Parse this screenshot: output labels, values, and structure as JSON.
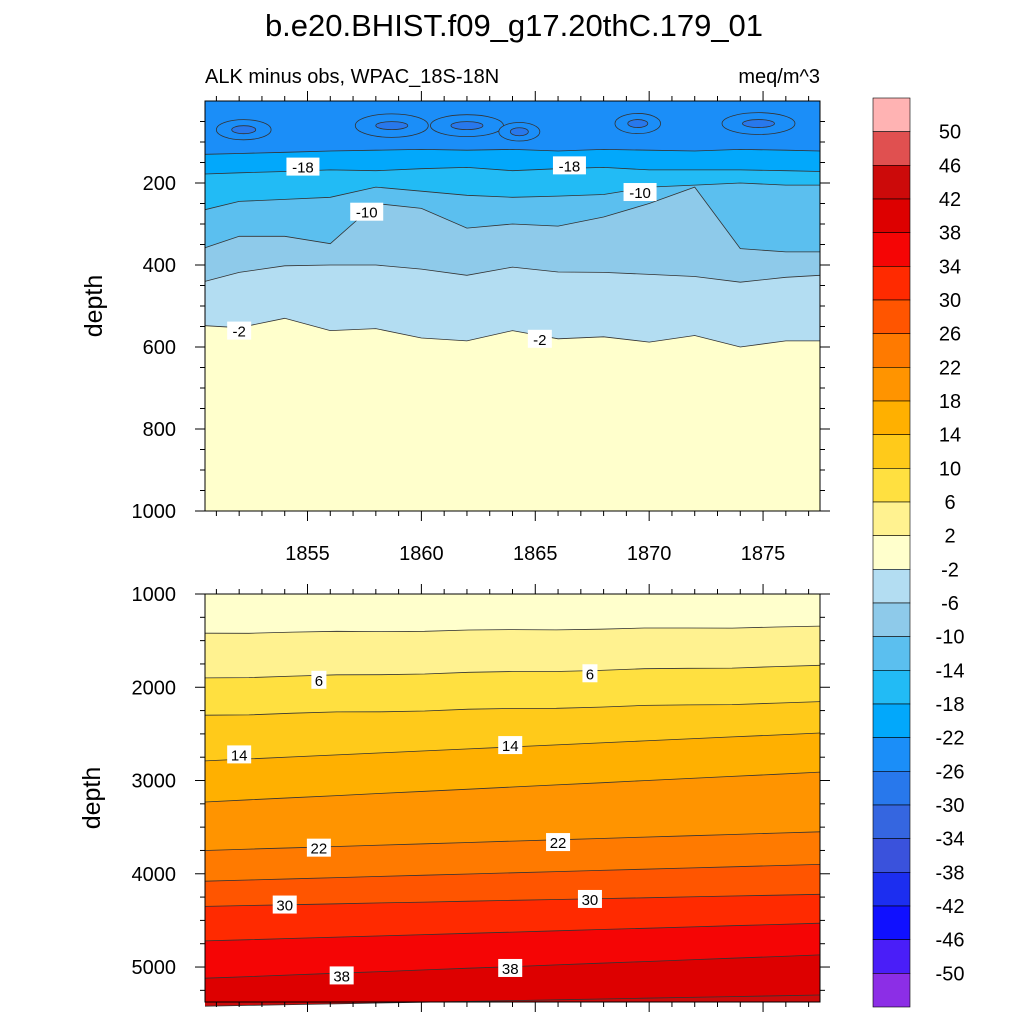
{
  "title": "b.e20.BHIST.f09_g17.20thC.179_01",
  "chart_data": [
    {
      "type": "contour",
      "left_string": "ALK minus obs, WPAC_18S-18N",
      "right_string": "meq/m^3",
      "ylabel": "depth",
      "y_reversed": true,
      "xlim": [
        1850.5,
        1877.5
      ],
      "ylim": [
        0,
        1000
      ],
      "x_ticks": [
        1855,
        1860,
        1865,
        1870,
        1875
      ],
      "y_ticks": [
        200,
        400,
        600,
        800,
        1000
      ],
      "x_years": [
        1850.5,
        1852,
        1854,
        1856,
        1858,
        1860,
        1862,
        1864,
        1866,
        1868,
        1870,
        1872,
        1874,
        1876,
        1877.5
      ],
      "contour_boundaries": [
        {
          "level": -2,
          "depth": [
            548,
            553,
            530,
            560,
            555,
            578,
            585,
            560,
            580,
            575,
            588,
            572,
            600,
            585,
            585
          ]
        },
        {
          "level": -6,
          "depth": [
            440,
            418,
            402,
            400,
            400,
            410,
            425,
            405,
            417,
            418,
            423,
            428,
            442,
            430,
            425
          ]
        },
        {
          "level": -10,
          "depth": [
            358,
            330,
            330,
            348,
            250,
            262,
            310,
            300,
            305,
            283,
            250,
            210,
            360,
            368,
            368
          ]
        },
        {
          "level": -14,
          "depth": [
            265,
            245,
            240,
            235,
            210,
            220,
            230,
            235,
            232,
            228,
            210,
            205,
            200,
            205,
            205
          ]
        },
        {
          "level": -18,
          "depth": [
            178,
            175,
            172,
            168,
            170,
            165,
            162,
            170,
            165,
            162,
            168,
            168,
            168,
            170,
            172
          ]
        },
        {
          "level": -22,
          "depth": [
            130,
            128,
            125,
            122,
            120,
            118,
            120,
            118,
            122,
            118,
            120,
            122,
            118,
            120,
            122
          ]
        }
      ],
      "contour_labels": [
        {
          "text": "-18",
          "x": 1854.8,
          "depth": 160
        },
        {
          "text": "-18",
          "x": 1866.5,
          "depth": 157
        },
        {
          "text": "-10",
          "x": 1857.6,
          "depth": 270
        },
        {
          "text": "-10",
          "x": 1869.6,
          "depth": 222
        },
        {
          "text": "-2",
          "x": 1852.0,
          "depth": 560
        },
        {
          "text": "-2",
          "x": 1865.2,
          "depth": 580
        }
      ]
    },
    {
      "type": "contour",
      "ylabel": "depth",
      "y_reversed": true,
      "xlim": [
        1850.5,
        1877.5
      ],
      "ylim": [
        1000,
        5375
      ],
      "y_ticks": [
        1000,
        2000,
        3000,
        4000,
        5000
      ],
      "levels_depth_left_right": [
        {
          "level": 2,
          "left": 1420,
          "right": 1350
        },
        {
          "level": 6,
          "left": 1900,
          "right": 1770
        },
        {
          "level": 10,
          "left": 2300,
          "right": 2160
        },
        {
          "level": 14,
          "left": 2790,
          "right": 2490
        },
        {
          "level": 18,
          "left": 3230,
          "right": 2910
        },
        {
          "level": 22,
          "left": 3750,
          "right": 3550
        },
        {
          "level": 26,
          "left": 4080,
          "right": 3900
        },
        {
          "level": 30,
          "left": 4350,
          "right": 4220
        },
        {
          "level": 34,
          "left": 4720,
          "right": 4530
        },
        {
          "level": 38,
          "left": 5120,
          "right": 4870
        },
        {
          "level": 42,
          "left": 5420,
          "right": 5300
        }
      ],
      "contour_labels": [
        {
          "text": "6",
          "x": 1855.5,
          "depth": 1920
        },
        {
          "text": "6",
          "x": 1867.4,
          "depth": 1850
        },
        {
          "text": "14",
          "x": 1852.0,
          "depth": 2720
        },
        {
          "text": "14",
          "x": 1863.9,
          "depth": 2620
        },
        {
          "text": "22",
          "x": 1855.5,
          "depth": 3720
        },
        {
          "text": "22",
          "x": 1866.0,
          "depth": 3660
        },
        {
          "text": "30",
          "x": 1854.0,
          "depth": 4330
        },
        {
          "text": "30",
          "x": 1867.4,
          "depth": 4270
        },
        {
          "text": "38",
          "x": 1856.5,
          "depth": 5090
        },
        {
          "text": "38",
          "x": 1863.9,
          "depth": 5010
        }
      ]
    }
  ],
  "colorbar": {
    "labels": [
      "50",
      "46",
      "42",
      "38",
      "34",
      "30",
      "26",
      "22",
      "18",
      "14",
      "10",
      "6",
      "2",
      "-2",
      "-6",
      "-10",
      "-14",
      "-18",
      "-22",
      "-26",
      "-30",
      "-34",
      "-38",
      "-42",
      "-46",
      "-50"
    ],
    "colors": [
      "#ffb3b3",
      "#e05050",
      "#cc0a0a",
      "#dd0000",
      "#f50505",
      "#ff2a00",
      "#ff5500",
      "#ff7a00",
      "#ff9400",
      "#ffb000",
      "#ffca1a",
      "#ffe040",
      "#fff290",
      "#ffffcc",
      "#b3ddf2",
      "#8ecaea",
      "#5bbfef",
      "#22bbf5",
      "#02a8fb",
      "#1b8ef8",
      "#2878ec",
      "#3566e0",
      "#3a52dc",
      "#1c2ef0",
      "#1010ff",
      "#4a1ef8",
      "#8c2ee6"
    ]
  },
  "level_colors": {
    "-26": "#1b8ef8",
    "-22": "#02a8fb",
    "-18": "#22bbf5",
    "-14": "#5bbfef",
    "-10": "#8ecaea",
    "-6": "#b3ddf2",
    "-2": "#ffffcc",
    "2": "#fff290",
    "6": "#ffe040",
    "10": "#ffca1a",
    "14": "#ffb000",
    "18": "#ff9400",
    "22": "#ff7a00",
    "26": "#ff5500",
    "30": "#ff2a00",
    "34": "#f50505",
    "38": "#dd0000",
    "42": "#cc0a0a"
  }
}
